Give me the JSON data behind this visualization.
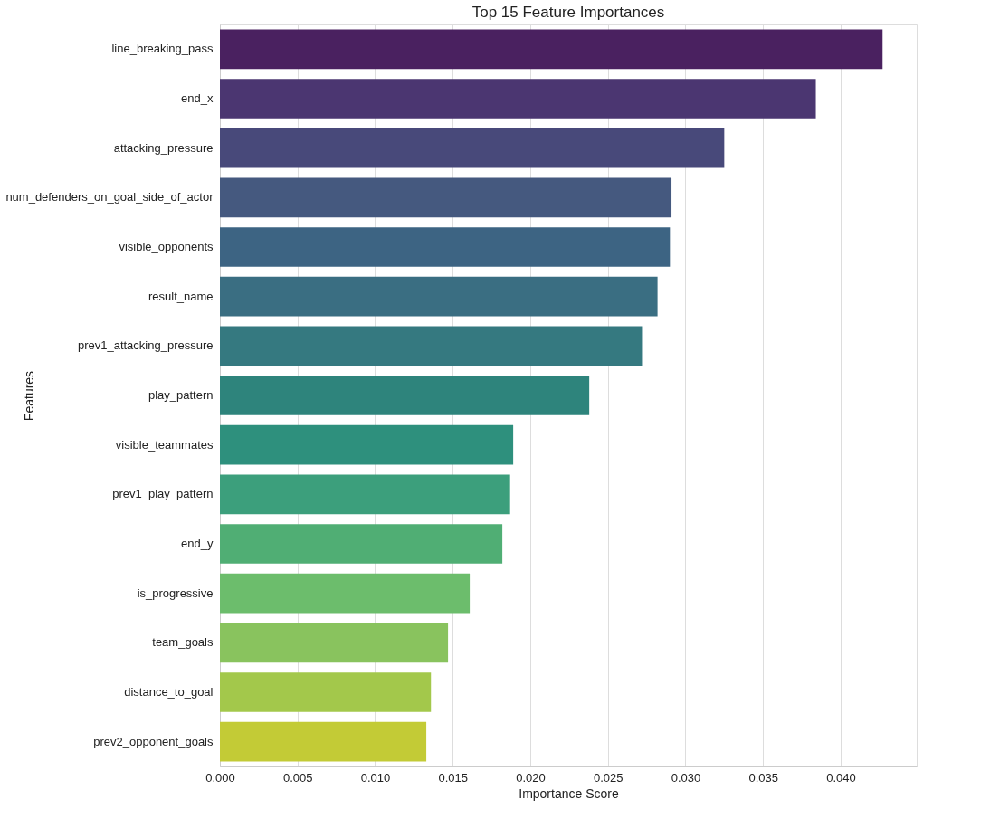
{
  "chart_data": {
    "type": "bar",
    "orientation": "horizontal",
    "title": "Top 15 Feature Importances",
    "xlabel": "Importance Score",
    "ylabel": "Features",
    "categories": [
      "line_breaking_pass",
      "end_x",
      "attacking_pressure",
      "num_defenders_on_goal_side_of_actor",
      "visible_opponents",
      "result_name",
      "prev1_attacking_pressure",
      "play_pattern",
      "visible_teammates",
      "prev1_play_pattern",
      "end_y",
      "is_progressive",
      "team_goals",
      "distance_to_goal",
      "prev2_opponent_goals"
    ],
    "values": [
      0.0427,
      0.0384,
      0.0325,
      0.0291,
      0.029,
      0.0282,
      0.0272,
      0.0238,
      0.0189,
      0.0187,
      0.0182,
      0.0161,
      0.0147,
      0.0136,
      0.0133
    ],
    "colors": [
      "#4a2160",
      "#4b3671",
      "#48497a",
      "#45597f",
      "#3d6483",
      "#3a6e82",
      "#357980",
      "#2e847c",
      "#2e907d",
      "#3c9f7c",
      "#50ae74",
      "#6cbd6c",
      "#89c35e",
      "#a3c84b",
      "#c3cb36"
    ],
    "xlim": [
      0,
      0.0449
    ],
    "xticks": [
      {
        "value": 0,
        "label": "0.000"
      },
      {
        "value": 0.005,
        "label": "0.005"
      },
      {
        "value": 0.01,
        "label": "0.010"
      },
      {
        "value": 0.015,
        "label": "0.015"
      },
      {
        "value": 0.02,
        "label": "0.020"
      },
      {
        "value": 0.025,
        "label": "0.025"
      },
      {
        "value": 0.03,
        "label": "0.030"
      },
      {
        "value": 0.035,
        "label": "0.035"
      },
      {
        "value": 0.04,
        "label": "0.040"
      }
    ],
    "grid": "x"
  }
}
